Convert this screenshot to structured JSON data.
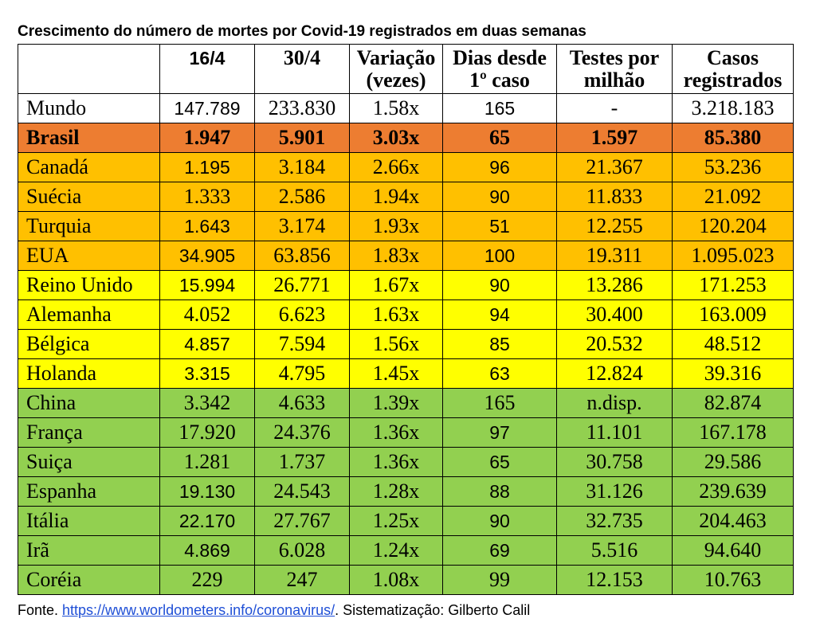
{
  "title": "Crescimento do número de mortes por Covid-19 registrados em duas semanas",
  "headers": {
    "country": "",
    "d16": "16/4",
    "d30": "30/4",
    "var_line1": "Variação",
    "var_line2": "(vezes)",
    "days_line1": "Dias desde",
    "days_line2": "1º caso",
    "tests_line1": "Testes por",
    "tests_line2": "milhão",
    "cases_line1": "Casos",
    "cases_line2": "registrados"
  },
  "colors": {
    "white": "#ffffff",
    "highlight": "#ed7d31",
    "orange": "#ffc000",
    "yellow": "#ffff00",
    "green": "#92d050"
  },
  "rows": [
    {
      "name": "Mundo",
      "d16": "147.789",
      "d30": "233.830",
      "var": "1.58x",
      "days": "165",
      "tests": "-",
      "cases": "3.218.183",
      "band": "white"
    },
    {
      "name": "Brasil",
      "d16": "1.947",
      "d30": "5.901",
      "var": "3.03x",
      "days": "65",
      "tests": "1.597",
      "cases": "85.380",
      "band": "highlight"
    },
    {
      "name": "Canadá",
      "d16": "1.195",
      "d30": "3.184",
      "var": "2.66x",
      "days": "96",
      "tests": "21.367",
      "cases": "53.236",
      "band": "orange"
    },
    {
      "name": "Suécia",
      "d16": "1.333",
      "d30": "2.586",
      "var": "1.94x",
      "days": "90",
      "tests": "11.833",
      "cases": "21.092",
      "band": "orange"
    },
    {
      "name": "Turquia",
      "d16": "1.643",
      "d30": "3.174",
      "var": "1.93x",
      "days": "51",
      "tests": "12.255",
      "cases": "120.204",
      "band": "orange"
    },
    {
      "name": "EUA",
      "d16": "34.905",
      "d30": "63.856",
      "var": "1.83x",
      "days": "100",
      "tests": "19.311",
      "cases": "1.095.023",
      "band": "orange"
    },
    {
      "name": "Reino Unido",
      "d16": "15.994",
      "d30": "26.771",
      "var": "1.67x",
      "days": "90",
      "tests": "13.286",
      "cases": "171.253",
      "band": "yellow"
    },
    {
      "name": "Alemanha",
      "d16": "4.052",
      "d30": "6.623",
      "var": "1.63x",
      "days": "94",
      "tests": "30.400",
      "cases": "163.009",
      "band": "yellow"
    },
    {
      "name": "Bélgica",
      "d16": "4.857",
      "d30": "7.594",
      "var": "1.56x",
      "days": "85",
      "tests": "20.532",
      "cases": "48.512",
      "band": "yellow"
    },
    {
      "name": "Holanda",
      "d16": "3.315",
      "d30": "4.795",
      "var": "1.45x",
      "days": "63",
      "tests": "12.824",
      "cases": "39.316",
      "band": "yellow"
    },
    {
      "name": "China",
      "d16": "3.342",
      "d30": "4.633",
      "var": "1.39x",
      "days": "165",
      "tests": "n.disp.",
      "cases": "82.874",
      "band": "green"
    },
    {
      "name": "França",
      "d16": "17.920",
      "d30": "24.376",
      "var": "1.36x",
      "days": "97",
      "tests": "11.101",
      "cases": "167.178",
      "band": "green"
    },
    {
      "name": "Suiça",
      "d16": "1.281",
      "d30": "1.737",
      "var": "1.36x",
      "days": "65",
      "tests": "30.758",
      "cases": "29.586",
      "band": "green"
    },
    {
      "name": "Espanha",
      "d16": "19.130",
      "d30": "24.543",
      "var": "1.28x",
      "days": "88",
      "tests": "31.126",
      "cases": "239.639",
      "band": "green"
    },
    {
      "name": "Itália",
      "d16": "22.170",
      "d30": "27.767",
      "var": "1.25x",
      "days": "90",
      "tests": "32.735",
      "cases": "204.463",
      "band": "green"
    },
    {
      "name": "Irã",
      "d16": "4.869",
      "d30": "6.028",
      "var": "1.24x",
      "days": "69",
      "tests": "5.516",
      "cases": "94.640",
      "band": "green"
    },
    {
      "name": "Coréia",
      "d16": "229",
      "d30": "247",
      "var": "1.08x",
      "days": "99",
      "tests": "12.153",
      "cases": "10.763",
      "band": "green"
    }
  ],
  "footer": {
    "prefix": "Fonte. ",
    "link": "https://www.worldometers.info/coronavirus/",
    "suffix": ". Sistematização: Gilberto Calil"
  }
}
